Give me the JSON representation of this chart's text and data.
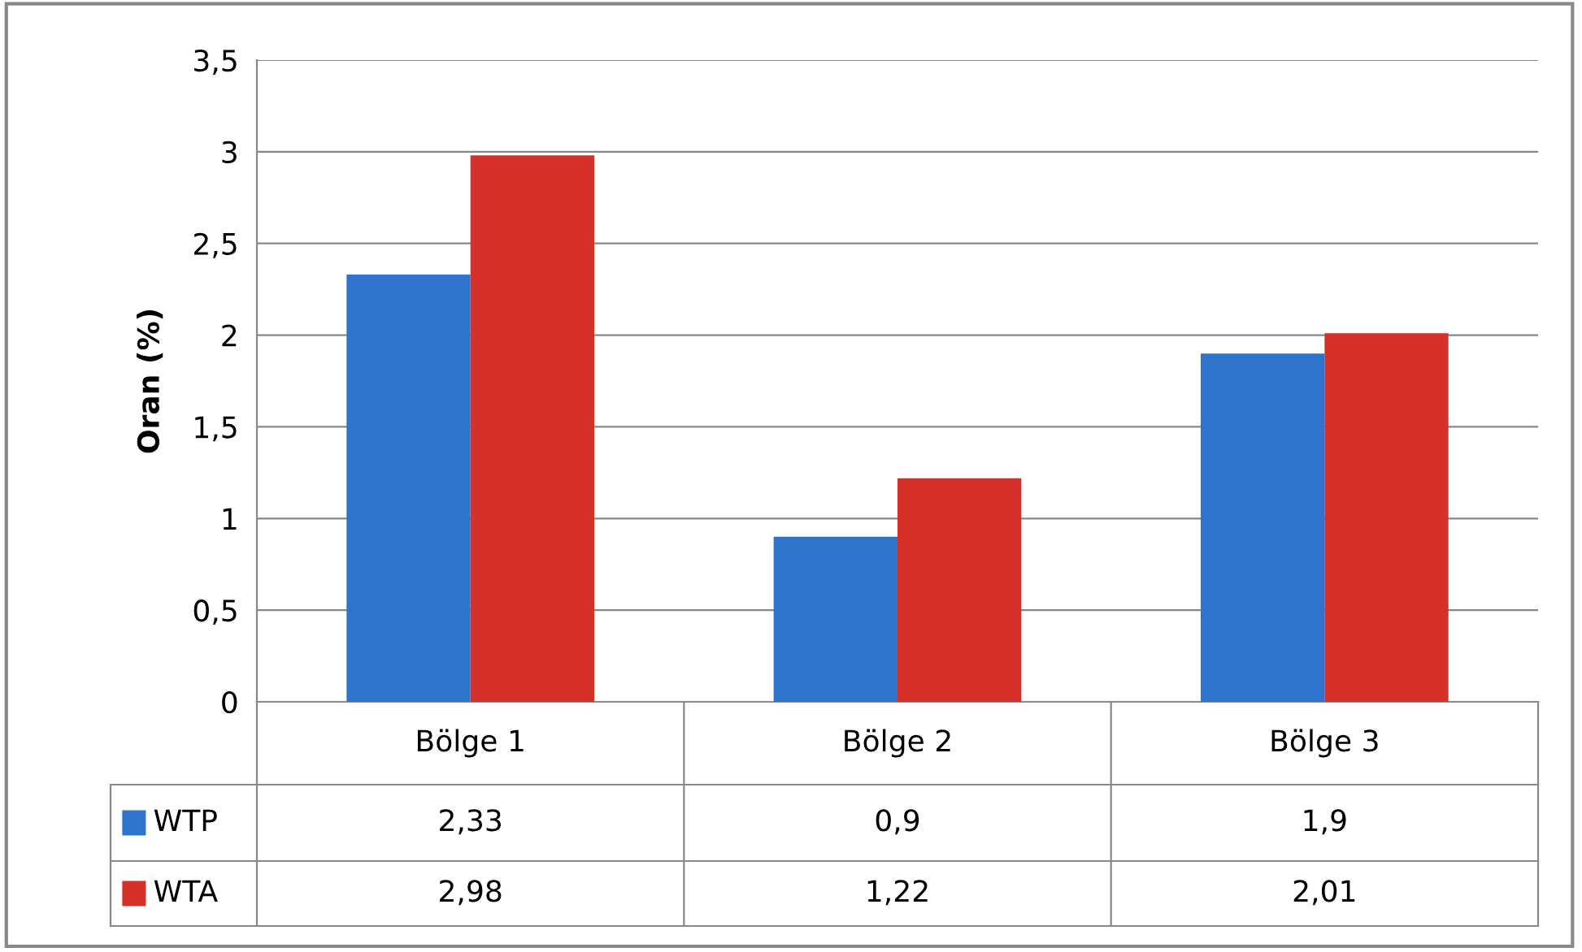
{
  "chart_data": {
    "type": "bar",
    "ylabel": "Oran (%)",
    "categories": [
      "Bölge 1",
      "Bölge 2",
      "Bölge 3"
    ],
    "series": [
      {
        "name": "WTP",
        "color": "#2e73cc",
        "values": [
          2.33,
          0.9,
          1.9
        ],
        "value_labels": [
          "2,33",
          "0,9",
          "1,9"
        ]
      },
      {
        "name": "WTA",
        "color": "#d6302a",
        "values": [
          2.98,
          1.22,
          2.01
        ],
        "value_labels": [
          "2,98",
          "1,22",
          "2,01"
        ]
      }
    ],
    "ylim": [
      0,
      3.5
    ],
    "yticks": [
      0,
      {
        "value": 0.5,
        "label": "0,5"
      },
      1,
      {
        "value": 1.5,
        "label": "1,5"
      },
      2,
      {
        "value": 2.5,
        "label": "2,5"
      },
      3,
      {
        "value": 3.5,
        "label": "3,5"
      }
    ],
    "grid": "y",
    "legend": "bottom"
  }
}
